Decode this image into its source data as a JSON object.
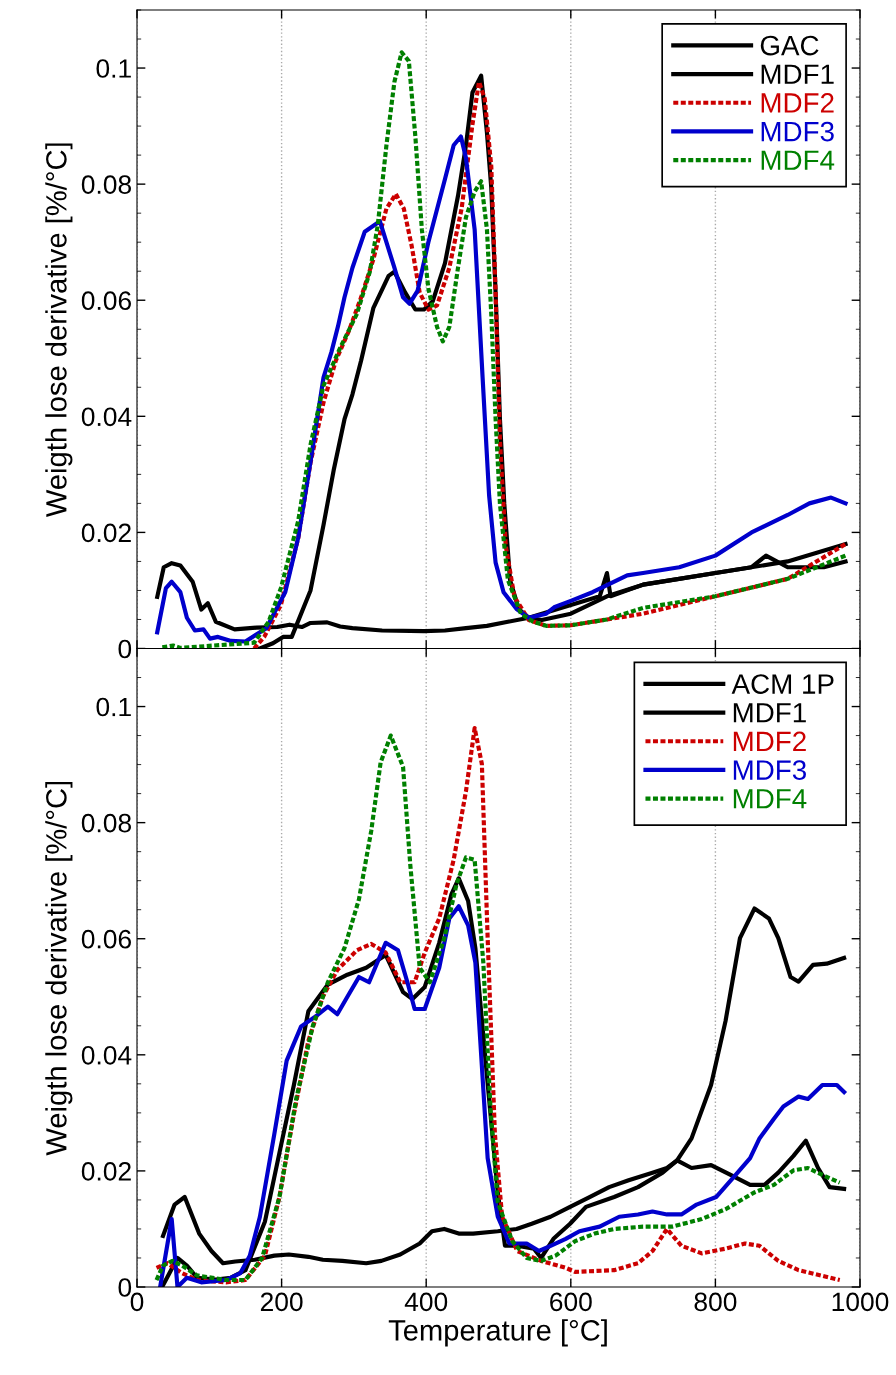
{
  "chart_data": [
    {
      "type": "line",
      "ylabel": "Weigth lose derivative [%/°C]",
      "xlim": [
        0,
        1000
      ],
      "xticks": [
        0,
        200,
        400,
        600,
        800,
        1000
      ],
      "ylim": [
        0,
        0.11
      ],
      "yticks": [
        0,
        0.02,
        0.04,
        0.06,
        0.08,
        0.1
      ],
      "grid": "x",
      "legend": "top right",
      "tick_labels": "y",
      "series": [
        {
          "name": "GAC",
          "color": "#000000",
          "line_style": "solid",
          "x": [
            28,
            37,
            48,
            60,
            77,
            89,
            98,
            109,
            135,
            165,
            194,
            211,
            228,
            240,
            263,
            281,
            298,
            339,
            397,
            426,
            455,
            484,
            513,
            542,
            600,
            640,
            650,
            655,
            700,
            750,
            800,
            850,
            870,
            900,
            950,
            980
          ],
          "values": [
            0.0089,
            0.014,
            0.0147,
            0.0143,
            0.0115,
            0.0067,
            0.0078,
            0.0046,
            0.0033,
            0.0036,
            0.0037,
            0.0041,
            0.0037,
            0.0044,
            0.0045,
            0.0038,
            0.0035,
            0.0031,
            0.003,
            0.0031,
            0.0035,
            0.0039,
            0.0046,
            0.0053,
            0.0075,
            0.009,
            0.013,
            0.009,
            0.011,
            0.012,
            0.013,
            0.014,
            0.016,
            0.014,
            0.014,
            0.015
          ]
        },
        {
          "name": "MDF1",
          "color": "#000000",
          "line_style": "solid",
          "x": [
            170,
            188,
            202,
            214,
            240,
            258,
            272,
            287,
            298,
            310,
            327,
            348,
            356,
            371,
            385,
            397,
            409,
            426,
            444,
            455,
            464,
            476,
            484,
            490,
            496,
            502,
            508,
            516,
            528,
            542,
            560,
            600,
            650,
            700,
            800,
            900,
            980
          ],
          "values": [
            0,
            0.0009,
            0.002,
            0.002,
            0.01,
            0.0213,
            0.0307,
            0.0395,
            0.0438,
            0.0496,
            0.0587,
            0.0642,
            0.0649,
            0.0613,
            0.0584,
            0.0584,
            0.0598,
            0.0664,
            0.078,
            0.0867,
            0.0958,
            0.0987,
            0.0889,
            0.0794,
            0.0613,
            0.0395,
            0.0249,
            0.0118,
            0.0068,
            0.0053,
            0.0049,
            0.006,
            0.009,
            0.011,
            0.013,
            0.015,
            0.018
          ]
        },
        {
          "name": "MDF2",
          "color": "#cc0000",
          "line_style": "dotted",
          "x": [
            162,
            176,
            199,
            223,
            240,
            258,
            275,
            293,
            310,
            327,
            345,
            358,
            369,
            380,
            391,
            403,
            415,
            432,
            449,
            464,
            473,
            481,
            490,
            496,
            502,
            510,
            522,
            542,
            566,
            600,
            650,
            700,
            800,
            900,
            980
          ],
          "values": [
            0,
            0.002,
            0.0075,
            0.019,
            0.032,
            0.0424,
            0.0496,
            0.0547,
            0.0605,
            0.0671,
            0.0758,
            0.0783,
            0.0758,
            0.0693,
            0.0613,
            0.0584,
            0.0591,
            0.0656,
            0.0758,
            0.0903,
            0.0976,
            0.0947,
            0.0831,
            0.0613,
            0.0358,
            0.0177,
            0.0089,
            0.0049,
            0.0039,
            0.004,
            0.005,
            0.006,
            0.009,
            0.012,
            0.018
          ]
        },
        {
          "name": "MDF3",
          "color": "#0000cc",
          "line_style": "solid",
          "x": [
            28,
            40,
            48,
            60,
            69,
            80,
            92,
            101,
            112,
            130,
            150,
            165,
            179,
            191,
            205,
            223,
            240,
            258,
            269,
            278,
            287,
            298,
            315,
            336,
            356,
            368,
            377,
            388,
            403,
            426,
            438,
            448,
            455,
            467,
            478,
            487,
            496,
            507,
            525,
            542,
            566,
            577,
            600,
            630,
            678,
            700,
            750,
            800,
            850,
            900,
            930,
            960,
            980
          ],
          "values": [
            0.0028,
            0.0104,
            0.0115,
            0.0097,
            0.0053,
            0.0031,
            0.0033,
            0.0017,
            0.002,
            0.0013,
            0.0012,
            0.0024,
            0.0035,
            0.0064,
            0.0097,
            0.0191,
            0.0322,
            0.0467,
            0.0511,
            0.0555,
            0.0605,
            0.0656,
            0.0718,
            0.0736,
            0.0656,
            0.0605,
            0.0594,
            0.0616,
            0.07,
            0.0809,
            0.0867,
            0.0882,
            0.0845,
            0.0722,
            0.0467,
            0.0264,
            0.0148,
            0.0097,
            0.0068,
            0.0053,
            0.006,
            0.0071,
            0.0082,
            0.0097,
            0.0126,
            0.013,
            0.014,
            0.016,
            0.02,
            0.023,
            0.025,
            0.026,
            0.025
          ]
        },
        {
          "name": "MDF4",
          "color": "#008000",
          "line_style": "dotted",
          "x": [
            35,
            50,
            60,
            162,
            182,
            199,
            223,
            240,
            258,
            281,
            304,
            322,
            333,
            345,
            356,
            366,
            376,
            385,
            394,
            403,
            415,
            423,
            432,
            444,
            455,
            467,
            476,
            484,
            490,
            496,
            502,
            513,
            531,
            548,
            566,
            600,
            650,
            700,
            800,
            900,
            980
          ],
          "values": [
            0.0002,
            0.0005,
            0.0001,
            0.001,
            0.0046,
            0.0104,
            0.022,
            0.0351,
            0.0453,
            0.0518,
            0.0576,
            0.0649,
            0.0729,
            0.0867,
            0.0976,
            0.1027,
            0.1012,
            0.0882,
            0.0722,
            0.062,
            0.0554,
            0.0529,
            0.0554,
            0.0656,
            0.0743,
            0.0787,
            0.0805,
            0.0722,
            0.0576,
            0.0395,
            0.0249,
            0.0118,
            0.006,
            0.0046,
            0.0039,
            0.004,
            0.005,
            0.007,
            0.009,
            0.012,
            0.016
          ]
        }
      ]
    },
    {
      "type": "line",
      "xlabel": "Temperature [°C]",
      "ylabel": "Weigth lose derivative [%/°C]",
      "xlim": [
        0,
        1000
      ],
      "xticks": [
        0,
        200,
        400,
        600,
        800,
        1000
      ],
      "ylim": [
        0,
        0.11
      ],
      "yticks": [
        0,
        0.02,
        0.04,
        0.06,
        0.08,
        0.1
      ],
      "grid": "x",
      "legend": "top right",
      "series": [
        {
          "name": "ACM 1P",
          "color": "#000000",
          "line_style": "solid",
          "x": [
            36,
            52,
            66,
            86,
            103,
            119,
            136,
            163,
            190,
            210,
            237,
            257,
            284,
            317,
            338,
            364,
            391,
            408,
            425,
            445,
            465,
            499,
            525,
            546,
            572,
            599,
            626,
            653,
            680,
            713,
            733,
            747,
            767,
            794,
            814,
            834,
            854,
            874,
            887,
            904,
            915,
            935,
            954,
            978
          ],
          "values": [
            0.0088,
            0.0142,
            0.0155,
            0.0092,
            0.0062,
            0.0041,
            0.0044,
            0.0047,
            0.0054,
            0.0056,
            0.0052,
            0.0047,
            0.0045,
            0.0041,
            0.0045,
            0.0056,
            0.0075,
            0.0096,
            0.01,
            0.0092,
            0.0092,
            0.0096,
            0.01,
            0.0109,
            0.0121,
            0.0138,
            0.0155,
            0.0172,
            0.0184,
            0.0197,
            0.0205,
            0.0218,
            0.0256,
            0.0348,
            0.0458,
            0.0601,
            0.0652,
            0.0635,
            0.0601,
            0.0534,
            0.0526,
            0.0555,
            0.0557,
            0.0567
          ]
        },
        {
          "name": "MDF1",
          "color": "#000000",
          "line_style": "solid",
          "x": [
            36,
            56,
            69,
            83,
            109,
            130,
            150,
            177,
            197,
            217,
            237,
            264,
            291,
            317,
            344,
            368,
            381,
            398,
            418,
            435,
            445,
            458,
            468,
            482,
            499,
            509,
            526,
            549,
            559,
            576,
            599,
            621,
            660,
            693,
            727,
            747,
            767,
            794,
            821,
            848,
            868,
            887,
            908,
            925,
            942,
            958,
            978
          ],
          "values": [
            0.0003,
            0.005,
            0.0037,
            0.0016,
            0.0013,
            0.0016,
            0.0029,
            0.0113,
            0.0231,
            0.0348,
            0.0475,
            0.0521,
            0.0538,
            0.055,
            0.0572,
            0.0508,
            0.0496,
            0.0517,
            0.0593,
            0.0677,
            0.0704,
            0.0665,
            0.0584,
            0.0391,
            0.0163,
            0.0071,
            0.0071,
            0.0066,
            0.005,
            0.0083,
            0.0109,
            0.0138,
            0.0155,
            0.0172,
            0.0197,
            0.0218,
            0.0205,
            0.021,
            0.0193,
            0.0176,
            0.0176,
            0.0197,
            0.0226,
            0.0252,
            0.0205,
            0.0172,
            0.0169
          ]
        },
        {
          "name": "MDF2",
          "color": "#cc0000",
          "line_style": "dotted",
          "x": [
            27,
            42,
            62,
            83,
            123,
            150,
            177,
            197,
            217,
            237,
            257,
            277,
            304,
            324,
            344,
            364,
            384,
            398,
            418,
            438,
            455,
            467,
            477,
            485,
            495,
            505,
            526,
            559,
            593,
            606,
            660,
            693,
            713,
            733,
            753,
            781,
            814,
            841,
            861,
            887,
            915,
            972
          ],
          "values": [
            0.0033,
            0.0041,
            0.0024,
            0.0012,
            0.0008,
            0.0012,
            0.0054,
            0.0155,
            0.0298,
            0.0424,
            0.05,
            0.0546,
            0.058,
            0.0591,
            0.0576,
            0.0525,
            0.0525,
            0.0576,
            0.0635,
            0.0736,
            0.0854,
            0.0963,
            0.0901,
            0.0601,
            0.0264,
            0.0121,
            0.0062,
            0.0045,
            0.0033,
            0.0026,
            0.0029,
            0.0041,
            0.0062,
            0.01,
            0.0071,
            0.0058,
            0.0066,
            0.0075,
            0.0071,
            0.0045,
            0.0029,
            0.0012
          ]
        },
        {
          "name": "MDF3",
          "color": "#0000cc",
          "line_style": "solid",
          "x": [
            32,
            48,
            56,
            69,
            89,
            123,
            143,
            156,
            170,
            190,
            207,
            227,
            247,
            264,
            277,
            291,
            307,
            321,
            344,
            361,
            374,
            384,
            398,
            418,
            432,
            445,
            458,
            468,
            485,
            499,
            515,
            539,
            556,
            572,
            593,
            612,
            640,
            667,
            693,
            713,
            733,
            753,
            774,
            801,
            828,
            848,
            861,
            881,
            894,
            915,
            928,
            948,
            968,
            978
          ],
          "values": [
            0,
            0.0117,
            0,
            0.0016,
            0.0008,
            0.0012,
            0.0024,
            0.0054,
            0.0121,
            0.0264,
            0.039,
            0.0449,
            0.0466,
            0.0483,
            0.047,
            0.05,
            0.0534,
            0.0525,
            0.0593,
            0.058,
            0.0525,
            0.0479,
            0.0479,
            0.055,
            0.0635,
            0.0656,
            0.0623,
            0.0559,
            0.0222,
            0.0121,
            0.0075,
            0.0075,
            0.0062,
            0.0071,
            0.0083,
            0.0096,
            0.0104,
            0.0121,
            0.0125,
            0.013,
            0.0125,
            0.0125,
            0.0142,
            0.0155,
            0.0193,
            0.0222,
            0.0256,
            0.029,
            0.0311,
            0.0328,
            0.0324,
            0.0348,
            0.0348,
            0.0336
          ]
        },
        {
          "name": "MDF4",
          "color": "#008000",
          "line_style": "dotted",
          "x": [
            27,
            36,
            49,
            62,
            83,
            123,
            150,
            173,
            197,
            220,
            243,
            264,
            287,
            307,
            324,
            337,
            351,
            368,
            378,
            391,
            405,
            425,
            442,
            455,
            467,
            479,
            489,
            499,
            519,
            539,
            559,
            579,
            606,
            633,
            660,
            700,
            740,
            781,
            814,
            854,
            881,
            908,
            928,
            948,
            972
          ],
          "values": [
            0.0012,
            0.0037,
            0.0045,
            0.0037,
            0.002,
            0.0012,
            0.0012,
            0.005,
            0.0155,
            0.0323,
            0.0449,
            0.0525,
            0.0584,
            0.0668,
            0.0786,
            0.0904,
            0.095,
            0.0896,
            0.0727,
            0.055,
            0.0525,
            0.0601,
            0.0694,
            0.074,
            0.0736,
            0.0559,
            0.0306,
            0.0146,
            0.0079,
            0.005,
            0.0045,
            0.0054,
            0.0079,
            0.0092,
            0.01,
            0.0104,
            0.0104,
            0.0117,
            0.0134,
            0.0163,
            0.0176,
            0.0201,
            0.0205,
            0.0193,
            0.018
          ]
        }
      ]
    }
  ]
}
